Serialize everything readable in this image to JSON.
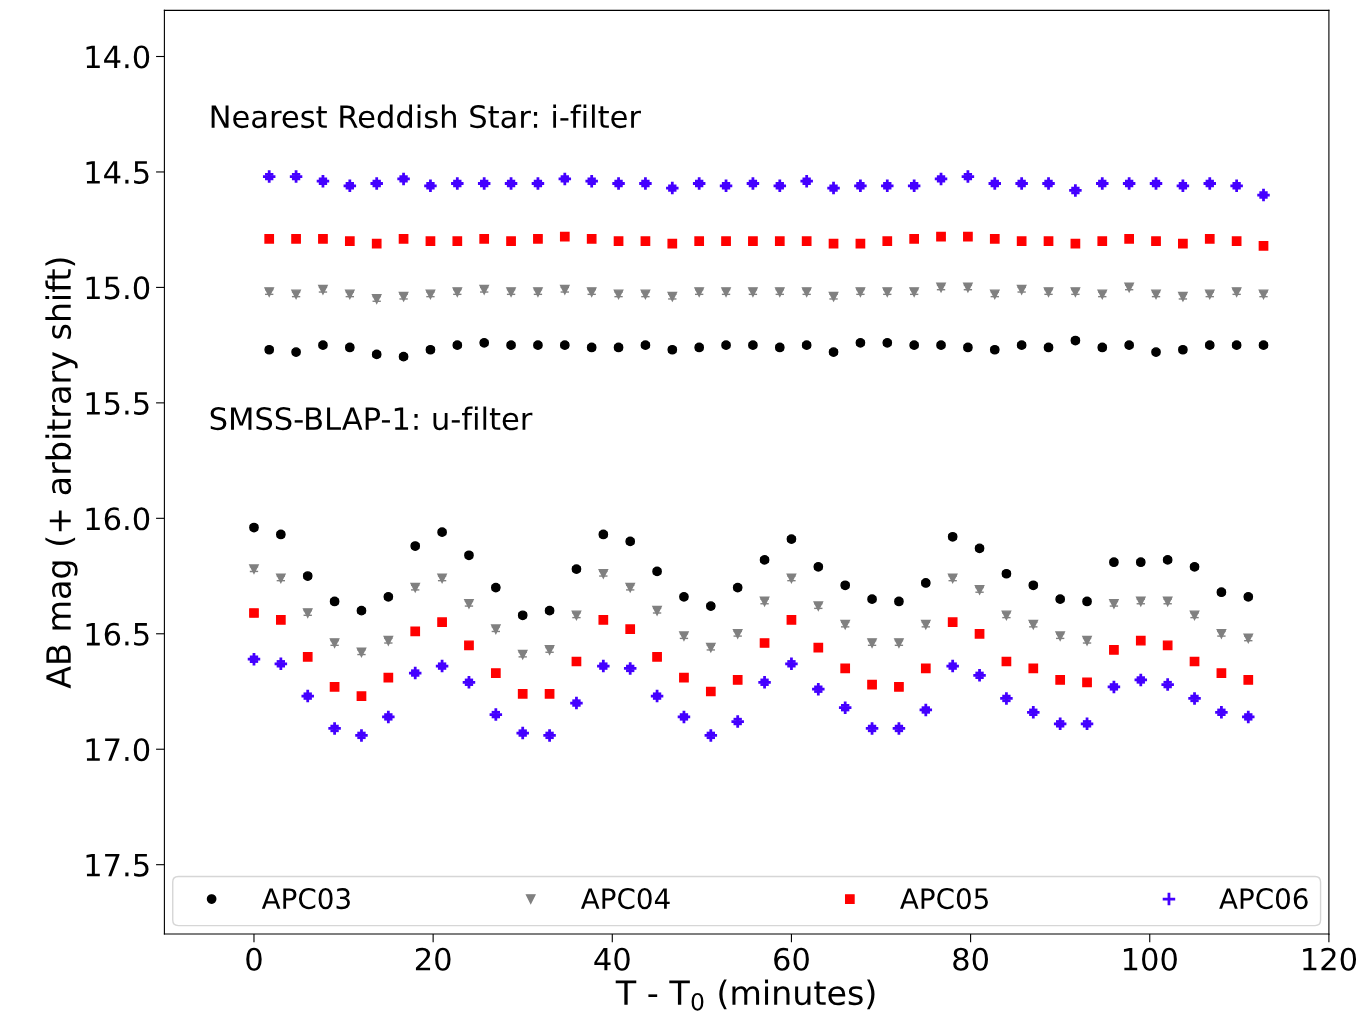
{
  "chart_data": {
    "type": "scatter",
    "xlabel": "T - T$_{0}$ (minutes)",
    "ylabel": "AB mag (+ arbitrary shift)",
    "x": [
      0,
      3,
      6,
      9,
      12,
      15,
      18,
      21,
      24,
      27,
      30,
      33,
      36,
      39,
      42,
      45,
      48,
      51,
      54,
      57,
      60,
      63,
      66,
      69,
      72,
      75,
      78,
      81,
      84,
      87,
      90,
      93,
      96,
      99,
      102,
      105,
      108,
      111,
      1.7,
      4.7,
      7.7,
      10.7,
      13.7,
      16.7,
      19.7,
      22.7,
      25.7,
      28.7,
      31.7,
      34.7,
      37.7,
      40.7,
      43.7,
      46.7,
      49.7,
      52.7,
      55.7,
      58.7,
      61.7,
      64.7,
      67.7,
      70.7,
      73.7,
      76.7,
      79.7,
      82.7,
      85.7,
      88.7,
      91.7,
      94.7,
      97.7,
      100.7,
      103.7,
      106.7,
      109.7,
      112.7
    ],
    "series": [
      {
        "name": "APC03",
        "color": "#000000",
        "marker": "circle",
        "values": [
          16.04,
          16.07,
          16.25,
          16.36,
          16.4,
          16.34,
          16.12,
          16.06,
          16.16,
          16.3,
          16.42,
          16.4,
          16.22,
          16.07,
          16.1,
          16.23,
          16.34,
          16.38,
          16.3,
          16.18,
          16.09,
          16.21,
          16.29,
          16.35,
          16.36,
          16.28,
          16.08,
          16.13,
          16.24,
          16.29,
          16.35,
          16.36,
          16.19,
          16.19,
          16.18,
          16.21,
          16.32,
          16.34,
          15.27,
          15.28,
          15.25,
          15.26,
          15.29,
          15.3,
          15.27,
          15.25,
          15.24,
          15.25,
          15.25,
          15.25,
          15.26,
          15.26,
          15.25,
          15.27,
          15.26,
          15.25,
          15.25,
          15.26,
          15.25,
          15.28,
          15.24,
          15.24,
          15.25,
          15.25,
          15.26,
          15.27,
          15.25,
          15.26,
          15.23,
          15.26,
          15.25,
          15.28,
          15.27,
          15.25,
          15.25,
          15.25
        ],
        "errors": [
          0.01,
          0.01,
          0.01,
          0.01,
          0.01,
          0.01,
          0.01,
          0.01,
          0.01,
          0.01,
          0.01,
          0.01,
          0.01,
          0.01,
          0.01,
          0.01,
          0.01,
          0.01,
          0.01,
          0.01,
          0.01,
          0.01,
          0.01,
          0.01,
          0.01,
          0.01,
          0.01,
          0.01,
          0.01,
          0.01,
          0.01,
          0.01,
          0.01,
          0.01,
          0.01,
          0.01,
          0.01,
          0.01,
          0.01,
          0.01,
          0.01,
          0.01,
          0.01,
          0.01,
          0.01,
          0.01,
          0.01,
          0.01,
          0.01,
          0.01,
          0.01,
          0.01,
          0.01,
          0.01,
          0.01,
          0.01,
          0.01,
          0.01,
          0.01,
          0.01,
          0.01,
          0.01,
          0.01,
          0.01,
          0.01,
          0.01,
          0.01,
          0.01,
          0.01,
          0.01,
          0.01,
          0.01,
          0.01,
          0.01,
          0.01,
          0.01
        ]
      },
      {
        "name": "APC04",
        "color": "#808080",
        "marker": "triangle",
        "values": [
          16.22,
          16.26,
          16.41,
          16.54,
          16.58,
          16.53,
          16.3,
          16.26,
          16.37,
          16.48,
          16.59,
          16.57,
          16.42,
          16.24,
          16.3,
          16.4,
          16.51,
          16.56,
          16.5,
          16.36,
          16.26,
          16.38,
          16.46,
          16.54,
          16.54,
          16.46,
          16.26,
          16.31,
          16.42,
          16.46,
          16.51,
          16.53,
          16.37,
          16.36,
          16.36,
          16.42,
          16.5,
          16.52,
          15.02,
          15.03,
          15.01,
          15.03,
          15.05,
          15.04,
          15.03,
          15.02,
          15.01,
          15.02,
          15.02,
          15.01,
          15.02,
          15.03,
          15.03,
          15.04,
          15.02,
          15.02,
          15.02,
          15.02,
          15.02,
          15.04,
          15.02,
          15.02,
          15.02,
          15.0,
          15.0,
          15.03,
          15.01,
          15.02,
          15.02,
          15.03,
          15.0,
          15.03,
          15.04,
          15.03,
          15.02,
          15.03
        ],
        "errors": [
          0.01,
          0.01,
          0.01,
          0.01,
          0.01,
          0.01,
          0.01,
          0.01,
          0.01,
          0.01,
          0.01,
          0.01,
          0.01,
          0.01,
          0.01,
          0.01,
          0.01,
          0.01,
          0.01,
          0.01,
          0.01,
          0.01,
          0.01,
          0.01,
          0.01,
          0.01,
          0.01,
          0.01,
          0.01,
          0.01,
          0.01,
          0.01,
          0.01,
          0.01,
          0.01,
          0.01,
          0.01,
          0.01,
          0.01,
          0.01,
          0.01,
          0.01,
          0.01,
          0.01,
          0.01,
          0.01,
          0.01,
          0.01,
          0.01,
          0.01,
          0.01,
          0.01,
          0.01,
          0.01,
          0.01,
          0.01,
          0.01,
          0.01,
          0.01,
          0.01,
          0.01,
          0.01,
          0.01,
          0.01,
          0.01,
          0.01,
          0.01,
          0.01,
          0.01,
          0.01,
          0.01,
          0.01,
          0.01,
          0.01,
          0.01,
          0.01
        ]
      },
      {
        "name": "APC05",
        "color": "#ff0000",
        "marker": "square",
        "values": [
          16.41,
          16.44,
          16.6,
          16.73,
          16.77,
          16.69,
          16.49,
          16.45,
          16.55,
          16.67,
          16.76,
          16.76,
          16.62,
          16.44,
          16.48,
          16.6,
          16.69,
          16.75,
          16.7,
          16.54,
          16.44,
          16.56,
          16.65,
          16.72,
          16.73,
          16.65,
          16.45,
          16.5,
          16.62,
          16.65,
          16.7,
          16.71,
          16.57,
          16.53,
          16.55,
          16.62,
          16.67,
          16.7,
          14.79,
          14.79,
          14.79,
          14.8,
          14.81,
          14.79,
          14.8,
          14.8,
          14.79,
          14.8,
          14.79,
          14.78,
          14.79,
          14.8,
          14.8,
          14.81,
          14.8,
          14.8,
          14.8,
          14.8,
          14.8,
          14.81,
          14.81,
          14.8,
          14.79,
          14.78,
          14.78,
          14.79,
          14.8,
          14.8,
          14.81,
          14.8,
          14.79,
          14.8,
          14.81,
          14.79,
          14.8,
          14.82
        ],
        "errors": [
          0.01,
          0.01,
          0.01,
          0.01,
          0.01,
          0.01,
          0.01,
          0.01,
          0.01,
          0.01,
          0.01,
          0.01,
          0.01,
          0.01,
          0.01,
          0.01,
          0.01,
          0.01,
          0.01,
          0.01,
          0.01,
          0.01,
          0.01,
          0.01,
          0.01,
          0.01,
          0.01,
          0.01,
          0.01,
          0.01,
          0.01,
          0.01,
          0.01,
          0.01,
          0.01,
          0.01,
          0.01,
          0.01,
          0.01,
          0.01,
          0.01,
          0.01,
          0.01,
          0.01,
          0.01,
          0.01,
          0.01,
          0.01,
          0.01,
          0.01,
          0.01,
          0.01,
          0.01,
          0.01,
          0.01,
          0.01,
          0.01,
          0.01,
          0.01,
          0.01,
          0.01,
          0.01,
          0.01,
          0.01,
          0.01,
          0.01,
          0.01,
          0.01,
          0.01,
          0.01,
          0.01,
          0.01,
          0.01,
          0.01,
          0.01,
          0.01
        ]
      },
      {
        "name": "APC06",
        "color": "#4400ff",
        "marker": "cross",
        "values": [
          16.61,
          16.63,
          16.77,
          16.91,
          16.94,
          16.86,
          16.67,
          16.64,
          16.71,
          16.85,
          16.93,
          16.94,
          16.8,
          16.64,
          16.65,
          16.77,
          16.86,
          16.94,
          16.88,
          16.71,
          16.63,
          16.74,
          16.82,
          16.91,
          16.91,
          16.83,
          16.64,
          16.68,
          16.78,
          16.84,
          16.89,
          16.89,
          16.73,
          16.7,
          16.72,
          16.78,
          16.84,
          16.86,
          14.52,
          14.52,
          14.54,
          14.56,
          14.55,
          14.53,
          14.56,
          14.55,
          14.55,
          14.55,
          14.55,
          14.53,
          14.54,
          14.55,
          14.55,
          14.57,
          14.55,
          14.56,
          14.55,
          14.56,
          14.54,
          14.57,
          14.56,
          14.56,
          14.56,
          14.53,
          14.52,
          14.55,
          14.55,
          14.55,
          14.58,
          14.55,
          14.55,
          14.55,
          14.56,
          14.55,
          14.56,
          14.6
        ],
        "errors": [
          0.01,
          0.01,
          0.01,
          0.01,
          0.01,
          0.01,
          0.01,
          0.01,
          0.01,
          0.01,
          0.01,
          0.01,
          0.01,
          0.01,
          0.01,
          0.01,
          0.01,
          0.01,
          0.01,
          0.01,
          0.01,
          0.01,
          0.01,
          0.01,
          0.01,
          0.01,
          0.01,
          0.01,
          0.01,
          0.01,
          0.01,
          0.01,
          0.01,
          0.01,
          0.01,
          0.01,
          0.01,
          0.01,
          0.01,
          0.01,
          0.01,
          0.01,
          0.01,
          0.01,
          0.01,
          0.01,
          0.01,
          0.01,
          0.01,
          0.01,
          0.01,
          0.01,
          0.01,
          0.01,
          0.01,
          0.01,
          0.01,
          0.01,
          0.01,
          0.01,
          0.01,
          0.01,
          0.01,
          0.01,
          0.01,
          0.01,
          0.01,
          0.01,
          0.01,
          0.01,
          0.01,
          0.01,
          0.01,
          0.01,
          0.01,
          0.01
        ]
      }
    ],
    "annotations": [
      "Nearest Reddish Star: i-filter",
      "SMSS-BLAP-1: u-filter"
    ],
    "xlim": [
      -10,
      120
    ],
    "xticks": [
      0,
      20,
      40,
      60,
      80,
      100,
      120
    ],
    "ylim": [
      17.8,
      13.8
    ],
    "yticks": [
      {
        "value": 14,
        "label": "14.0"
      },
      14.5,
      {
        "value": 15,
        "label": "15.0"
      },
      15.5,
      {
        "value": 16,
        "label": "16.0"
      },
      16.5,
      {
        "value": 17,
        "label": "17.0"
      },
      17.5
    ],
    "grid": false,
    "legend": "bottom"
  }
}
